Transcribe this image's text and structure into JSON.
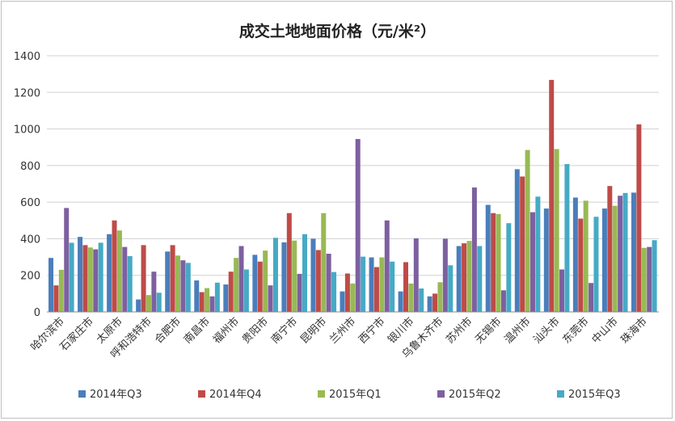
{
  "chart_data": {
    "type": "bar",
    "title": "成交土地地面价格（元/米²）",
    "xlabel": "",
    "ylabel": "",
    "ylim": [
      0,
      1400
    ],
    "yticks": [
      0,
      200,
      400,
      600,
      800,
      1000,
      1200,
      1400
    ],
    "grid": true,
    "legend_position": "bottom",
    "categories": [
      "哈尔滨市",
      "石家庄市",
      "太原市",
      "呼和浩特市",
      "合肥市",
      "南昌市",
      "福州市",
      "贵阳市",
      "南宁市",
      "昆明市",
      "兰州市",
      "西宁市",
      "银川市",
      "乌鲁木齐市",
      "苏州市",
      "无锡市",
      "温州市",
      "汕头市",
      "东莞市",
      "中山市",
      "珠海市"
    ],
    "series": [
      {
        "name": "2014年Q3",
        "color": "#4a7ebb",
        "values": [
          295,
          410,
          425,
          68,
          330,
          172,
          150,
          312,
          380,
          400,
          112,
          298,
          112,
          85,
          360,
          585,
          780,
          565,
          625,
          565,
          652
        ]
      },
      {
        "name": "2014年Q4",
        "color": "#be4b48",
        "values": [
          145,
          365,
          500,
          365,
          365,
          108,
          220,
          275,
          540,
          338,
          210,
          245,
          272,
          100,
          375,
          540,
          740,
          1268,
          510,
          688,
          1025
        ]
      },
      {
        "name": "2015年Q1",
        "color": "#98b954",
        "values": [
          230,
          352,
          445,
          92,
          308,
          130,
          295,
          335,
          390,
          540,
          155,
          298,
          155,
          162,
          388,
          535,
          885,
          890,
          608,
          580,
          350
        ]
      },
      {
        "name": "2015年Q2",
        "color": "#7d60a0",
        "values": [
          568,
          342,
          355,
          220,
          282,
          85,
          360,
          145,
          208,
          318,
          945,
          500,
          402,
          400,
          680,
          118,
          545,
          232,
          158,
          635,
          355
        ]
      },
      {
        "name": "2015年Q3",
        "color": "#46aac5",
        "values": [
          378,
          378,
          305,
          105,
          268,
          160,
          232,
          405,
          425,
          218,
          302,
          275,
          128,
          255,
          360,
          485,
          630,
          808,
          520,
          650,
          392
        ]
      }
    ]
  }
}
